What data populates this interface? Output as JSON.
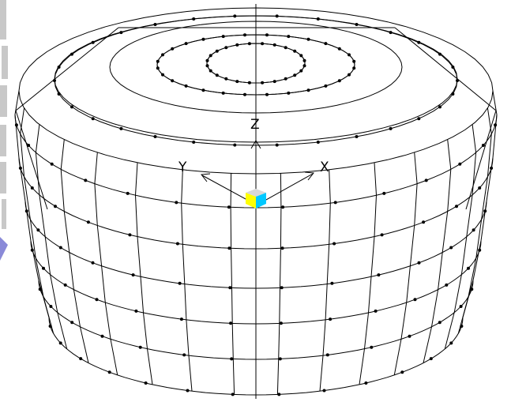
{
  "viewport": {
    "background": "#ffffff",
    "mesh_color": "#000000",
    "node_color": "#000000"
  },
  "axes": {
    "x_label": "X",
    "y_label": "Y",
    "z_label": "Z"
  },
  "origin_marker": {
    "icon": "cube-icon",
    "colors": {
      "left_face": "#ffff00",
      "right_face": "#00c8ff",
      "top_face": "#d8d8d8"
    }
  },
  "left_strip": {
    "colors": [
      "#c0c0c0",
      "#8a8ad8"
    ]
  }
}
